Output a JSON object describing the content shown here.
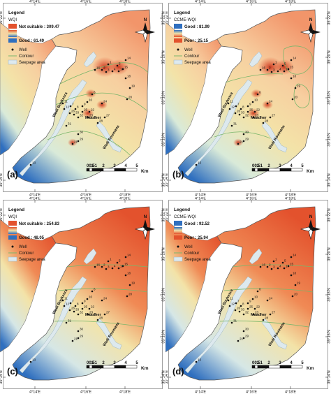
{
  "tick_labels": {
    "lon": [
      "4°14'E",
      "4°16'E",
      "4°18'E"
    ],
    "lat": [
      "35°22'N",
      "35°20'N",
      "35°18'N",
      "35°16'N",
      "35°14'N"
    ]
  },
  "scalebar": {
    "labels": [
      "0",
      "0.5",
      "1",
      "2",
      "3",
      "4",
      "5"
    ],
    "unit": "Km"
  },
  "north_label": "N",
  "colors": {
    "high": "#e3522d",
    "mid": "#f3e3a8",
    "low": "#2f6fbf",
    "wadi": "#dde9ee",
    "contour": "#7ab66b",
    "frame": "#888888"
  },
  "panels": [
    {
      "letter": "(a)",
      "legend_title": "Legend",
      "index_name": "WQI",
      "high_label": "Not suitable : 309.47",
      "low_label": "Good : 61.49",
      "well_label": "Well",
      "contour_label": "Contour",
      "seepage_label": "Seepage area"
    },
    {
      "letter": "(b)",
      "legend_title": "Legend",
      "index_name": "CCME-WQI",
      "high_label": "Good : 81.99",
      "low_label": "Poor : 25.15",
      "well_label": "Well",
      "contour_label": "Contour",
      "seepage_label": "Seepage area"
    },
    {
      "letter": "(c)",
      "legend_title": "Legend",
      "index_name": "WQI",
      "high_label": "Not suitable : 254.83",
      "low_label": "Good : 48.05",
      "well_label": "Well",
      "contour_label": "Contour",
      "seepage_label": "Seepage area"
    },
    {
      "letter": "(d)",
      "legend_title": "Legend",
      "index_name": "CCME-WQI",
      "high_label": "Good : 92.52",
      "low_label": "Poor : 25.94",
      "well_label": "Well",
      "contour_label": "Contour",
      "seepage_label": "Seepage area"
    }
  ],
  "wadis": [
    "Wadi Boukesra",
    "Wadi Roumana"
  ],
  "town": "Maadher",
  "wells": [
    "1",
    "2",
    "3",
    "4",
    "5",
    "6",
    "7",
    "8",
    "9",
    "10",
    "11",
    "12",
    "13",
    "14",
    "15",
    "16",
    "17",
    "18",
    "19",
    "20",
    "21",
    "22",
    "23",
    "24",
    "25",
    "26",
    "27",
    "28",
    "29",
    "30",
    "31",
    "32",
    "33"
  ]
}
